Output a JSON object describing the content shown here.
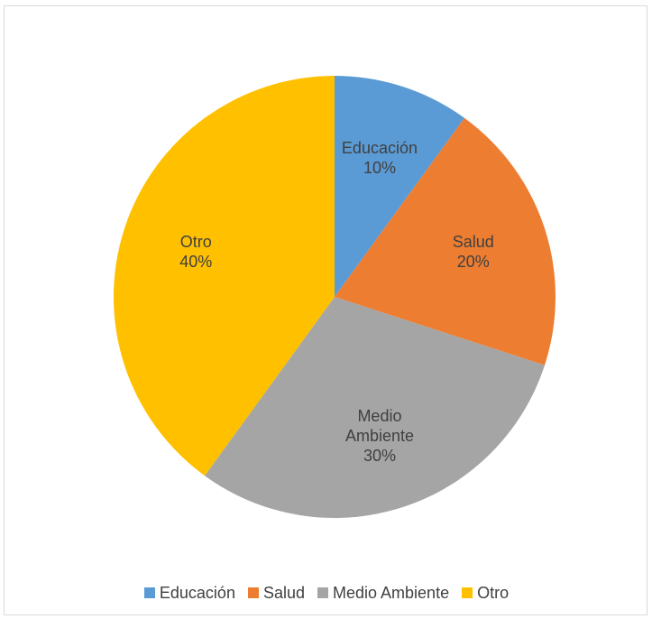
{
  "chart_data": {
    "type": "pie",
    "categories": [
      "Educación",
      "Salud",
      "Medio Ambiente",
      "Otro"
    ],
    "values": [
      10,
      20,
      30,
      40
    ],
    "data_labels": [
      {
        "lines": [
          "Educación",
          "10%"
        ]
      },
      {
        "lines": [
          "Salud",
          "20%"
        ]
      },
      {
        "lines": [
          "Medio",
          "Ambiente",
          "30%"
        ]
      },
      {
        "lines": [
          "Otro",
          "40%"
        ]
      }
    ],
    "colors": [
      "#5b9bd5",
      "#ed7d31",
      "#a5a5a5",
      "#ffc000"
    ],
    "legend_position": "bottom",
    "start_angle_deg": 0,
    "direction": "clockwise"
  },
  "legend": {
    "items": [
      {
        "label": "Educación",
        "color": "#5b9bd5"
      },
      {
        "label": "Salud",
        "color": "#ed7d31"
      },
      {
        "label": "Medio Ambiente",
        "color": "#a5a5a5"
      },
      {
        "label": "Otro",
        "color": "#ffc000"
      }
    ]
  }
}
